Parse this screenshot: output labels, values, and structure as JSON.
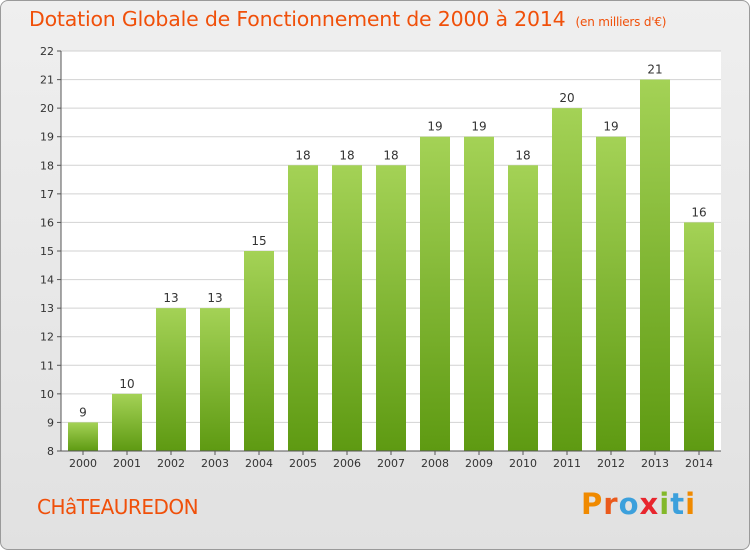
{
  "header": {
    "title": "Dotation Globale de Fonctionnement de 2000 à 2014",
    "unit": "(en milliers d'€)"
  },
  "footer": {
    "commune": "CHâTEAUREDON",
    "logo_letters": [
      "P",
      "r",
      "o",
      "x",
      "i",
      "t",
      "i"
    ],
    "logo_colors": [
      "#f08a00",
      "#ea5a1c",
      "#3ca0dc",
      "#e8262e",
      "#83b82a",
      "#3ca0dc",
      "#f08a00"
    ]
  },
  "colors": {
    "title": "#f0500a",
    "bar_light": "#a4d256",
    "bar_dark": "#5e9a12",
    "grid": "#d2d2d2",
    "axis_text": "#333333"
  },
  "chart_data": {
    "type": "bar",
    "title": "Dotation Globale de Fonctionnement de 2000 à 2014",
    "subtitle": "(en milliers d'€)",
    "xlabel": "",
    "ylabel": "",
    "categories": [
      "2000",
      "2001",
      "2002",
      "2003",
      "2004",
      "2005",
      "2006",
      "2007",
      "2008",
      "2009",
      "2010",
      "2011",
      "2012",
      "2013",
      "2014"
    ],
    "values": [
      9,
      10,
      13,
      13,
      15,
      18,
      18,
      18,
      19,
      19,
      18,
      20,
      19,
      21,
      16
    ],
    "ylim": [
      8,
      22
    ],
    "yticks": [
      8,
      9,
      10,
      11,
      12,
      13,
      14,
      15,
      16,
      17,
      18,
      19,
      20,
      21,
      22
    ],
    "grid": true,
    "legend": "none"
  }
}
